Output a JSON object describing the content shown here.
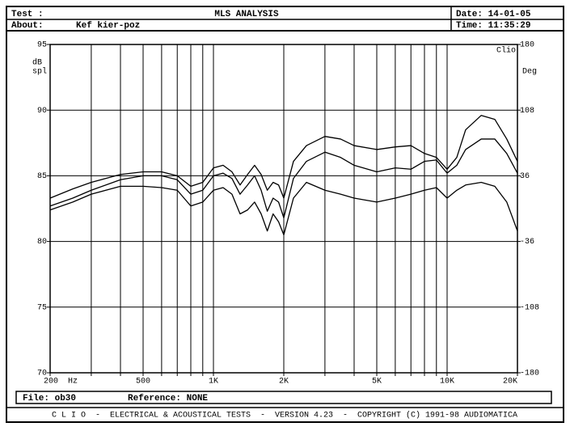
{
  "header": {
    "test_label": "Test :",
    "title": "MLS ANALYSIS",
    "date": "Date: 14-01-05",
    "about_label": "About:",
    "about": "Kef kier-poz",
    "time": "Time: 11:35:29"
  },
  "status": {
    "file": "File: ob30",
    "reference": "Reference: NONE"
  },
  "footer": "C L I O  -  ELECTRICAL & ACOUSTICAL TESTS  -  VERSION 4.23  -  COPYRIGHT (C) 1991-98 AUDIOMATICA",
  "chart_data": {
    "type": "line",
    "xscale": "log",
    "grid": true,
    "brand": "Clio",
    "ylabel": [
      "dB",
      "spl"
    ],
    "y2label": "Deg",
    "xlabel": "Hz",
    "xlim": [
      200,
      20000
    ],
    "ylim": [
      70,
      95
    ],
    "y2lim": [
      -180,
      180
    ],
    "yticks": [
      70,
      75,
      80,
      85,
      90,
      95
    ],
    "y2ticks": [
      -180,
      -108,
      -36,
      36,
      108,
      180
    ],
    "xticks": [
      200,
      {
        "value": 300,
        "label": null
      },
      {
        "value": 400,
        "label": null
      },
      500,
      {
        "value": 600,
        "label": null
      },
      {
        "value": 700,
        "label": null
      },
      {
        "value": 800,
        "label": null
      },
      {
        "value": 900,
        "label": null
      },
      {
        "value": 1000,
        "label": "1K"
      },
      {
        "value": 2000,
        "label": "2K"
      },
      {
        "value": 3000,
        "label": null
      },
      {
        "value": 4000,
        "label": null
      },
      {
        "value": 5000,
        "label": "5K"
      },
      {
        "value": 6000,
        "label": null
      },
      {
        "value": 7000,
        "label": null
      },
      {
        "value": 8000,
        "label": null
      },
      {
        "value": 9000,
        "label": null
      },
      {
        "value": 10000,
        "label": "10K"
      },
      {
        "value": 20000,
        "label": "20K"
      }
    ],
    "x": [
      200,
      250,
      300,
      400,
      500,
      600,
      700,
      800,
      900,
      1000,
      1100,
      1200,
      1300,
      1400,
      1500,
      1600,
      1700,
      1800,
      1900,
      2000,
      2200,
      2500,
      3000,
      3500,
      4000,
      5000,
      6000,
      7000,
      8000,
      9000,
      10000,
      11000,
      12000,
      14000,
      16000,
      18000,
      20000
    ],
    "series": [
      {
        "color": "#000000",
        "values": [
          83.3,
          84.0,
          84.5,
          85.1,
          85.3,
          85.3,
          85.0,
          84.2,
          84.5,
          85.6,
          85.8,
          85.3,
          84.3,
          85.1,
          85.8,
          85.1,
          83.9,
          84.5,
          84.3,
          83.3,
          86.1,
          87.3,
          88.0,
          87.8,
          87.3,
          87.0,
          87.2,
          87.3,
          86.7,
          86.4,
          85.5,
          86.4,
          88.5,
          89.6,
          89.3,
          87.8,
          86.1
        ]
      },
      {
        "color": "#000000",
        "values": [
          82.7,
          83.3,
          83.9,
          84.7,
          85.0,
          85.0,
          84.7,
          83.6,
          83.9,
          85.0,
          85.2,
          84.8,
          83.6,
          84.3,
          85.0,
          83.9,
          82.3,
          83.3,
          83.0,
          81.8,
          84.8,
          86.1,
          86.8,
          86.4,
          85.8,
          85.3,
          85.6,
          85.5,
          86.1,
          86.2,
          85.2,
          85.8,
          87.0,
          87.8,
          87.8,
          86.7,
          85.2
        ]
      },
      {
        "color": "#000000",
        "values": [
          82.4,
          83.0,
          83.6,
          84.2,
          84.2,
          84.1,
          83.9,
          82.7,
          83.0,
          83.9,
          84.1,
          83.6,
          82.1,
          82.4,
          83.0,
          82.1,
          80.8,
          82.1,
          81.5,
          80.5,
          83.3,
          84.5,
          83.9,
          83.6,
          83.3,
          83.0,
          83.3,
          83.6,
          83.9,
          84.1,
          83.3,
          83.9,
          84.3,
          84.5,
          84.2,
          83.0,
          80.8
        ]
      }
    ]
  }
}
